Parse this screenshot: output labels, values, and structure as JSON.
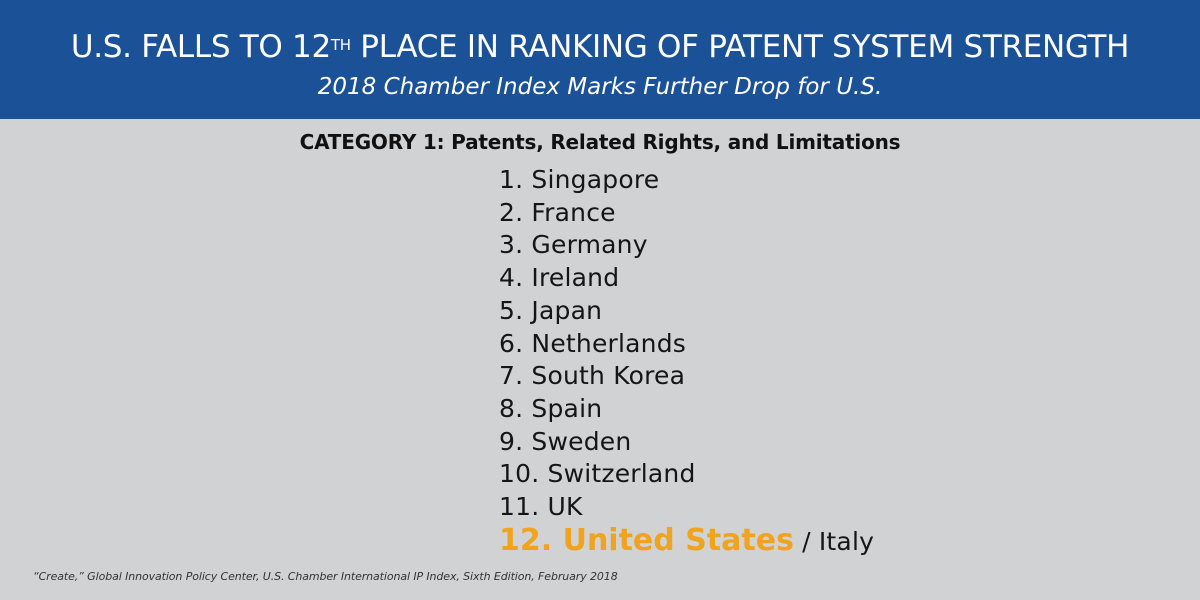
{
  "header": {
    "title_prefix": "U.S. FALLS TO 12",
    "title_superscript": "TH",
    "title_suffix": " PLACE IN RANKING OF PATENT SYSTEM STRENGTH",
    "subtitle": "2018 Chamber Index Marks Further Drop for U.S."
  },
  "category": {
    "heading": "CATEGORY 1: Patents, Related Rights, and Limitations"
  },
  "ranking": {
    "items": [
      {
        "rank": "1.",
        "country": "Singapore"
      },
      {
        "rank": "2.",
        "country": "France"
      },
      {
        "rank": "3.",
        "country": "Germany"
      },
      {
        "rank": "4.",
        "country": "Ireland"
      },
      {
        "rank": "5.",
        "country": "Japan"
      },
      {
        "rank": "6.",
        "country": "Netherlands"
      },
      {
        "rank": "7.",
        "country": "South Korea"
      },
      {
        "rank": "8.",
        "country": "Spain"
      },
      {
        "rank": "9.",
        "country": "Sweden"
      },
      {
        "rank": "10.",
        "country": "Switzerland"
      },
      {
        "rank": "11.",
        "country": "UK"
      }
    ],
    "highlight": {
      "label": "12. United States",
      "tie": " / Italy"
    }
  },
  "footnote": "“Create,” Global Innovation Policy Center, U.S. Chamber International IP Index, Sixth Edition, February 2018",
  "colors": {
    "header_bg": "#1B5197",
    "body_bg": "#D1D2D4",
    "highlight": "#F0A31E",
    "text": "#151515"
  }
}
